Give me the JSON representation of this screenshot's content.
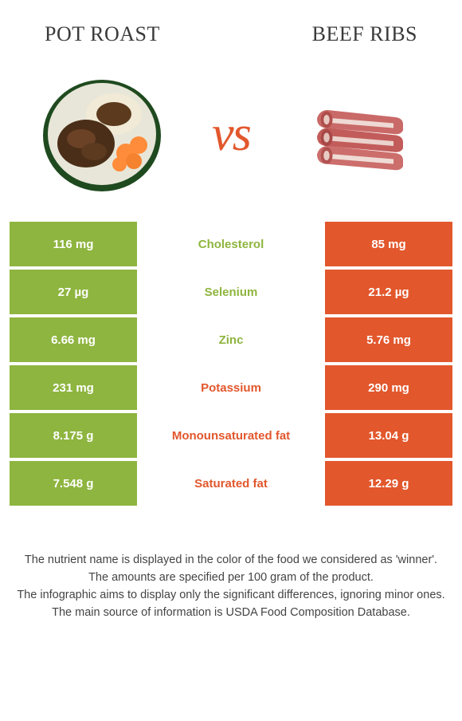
{
  "colors": {
    "left": "#8eb53f",
    "right": "#e2572c",
    "background": "#ffffff",
    "text": "#333333",
    "cell_text": "#ffffff"
  },
  "header": {
    "left_title": "Pot roast",
    "right_title": "Beef ribs",
    "vs": "vs"
  },
  "images": {
    "left_alt": "pot-roast-plate",
    "right_alt": "beef-ribs-cuts"
  },
  "rows": [
    {
      "left": "116 mg",
      "label": "Cholesterol",
      "right": "85 mg",
      "winner": "left"
    },
    {
      "left": "27 µg",
      "label": "Selenium",
      "right": "21.2 µg",
      "winner": "left"
    },
    {
      "left": "6.66 mg",
      "label": "Zinc",
      "right": "5.76 mg",
      "winner": "left"
    },
    {
      "left": "231 mg",
      "label": "Potassium",
      "right": "290 mg",
      "winner": "right"
    },
    {
      "left": "8.175 g",
      "label": "Monounsaturated fat",
      "right": "13.04 g",
      "winner": "right"
    },
    {
      "left": "7.548 g",
      "label": "Saturated fat",
      "right": "12.29 g",
      "winner": "right"
    }
  ],
  "footer": [
    "The nutrient name is displayed in the color of the food we considered as 'winner'.",
    "The amounts are specified per 100 gram of the product.",
    "The infographic aims to display only the significant differences, ignoring minor ones.",
    "The main source of information is USDA Food Composition Database."
  ]
}
